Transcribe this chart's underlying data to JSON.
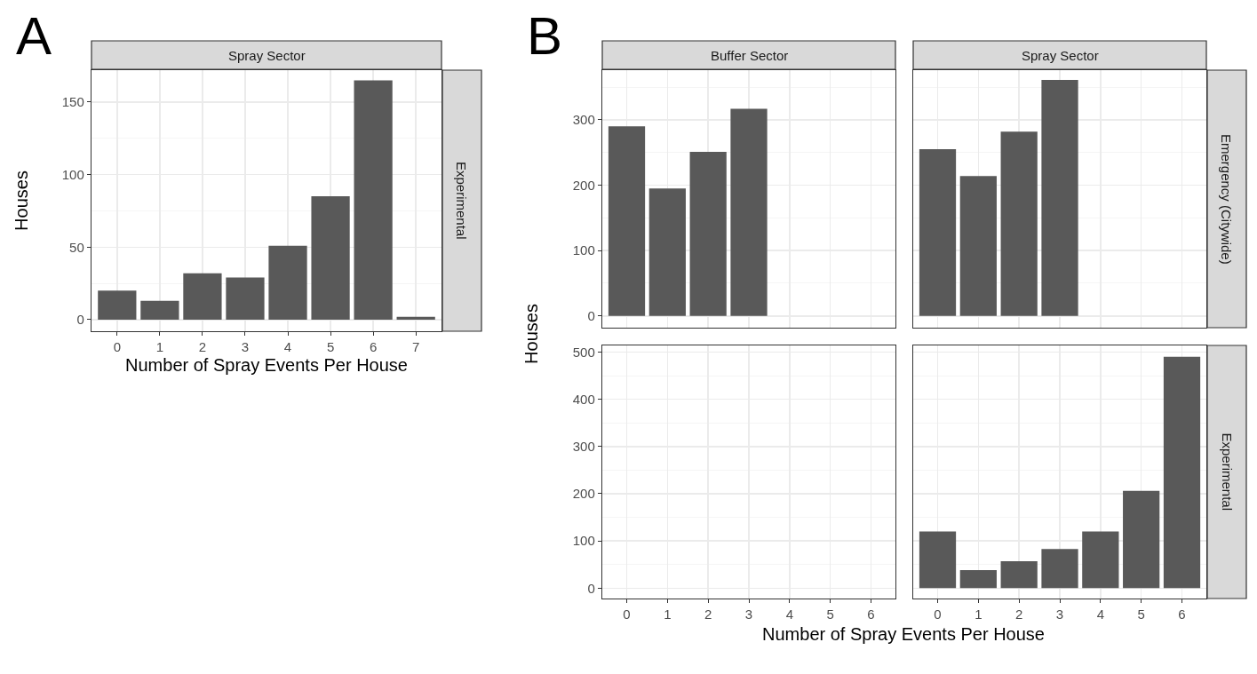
{
  "chart_data": [
    {
      "type": "bar",
      "title": "Spray Sector",
      "xlabel": "Number of Spray Events Per House",
      "ylabel": "Houses",
      "annotations": [
        "A",
        "Experimental"
      ],
      "categories": [
        "0",
        "1",
        "2",
        "3",
        "4",
        "5",
        "6",
        "7"
      ],
      "values": [
        20,
        13,
        32,
        29,
        51,
        85,
        165,
        2
      ],
      "color": "#595959",
      "ylim": [
        -8,
        172
      ],
      "yticks": [
        0,
        50,
        100,
        150
      ],
      "grid": true
    },
    {
      "type": "bar",
      "title": "Buffer Sector",
      "annotations": [
        "B"
      ],
      "categories": [
        "0",
        "1",
        "2",
        "3",
        "4",
        "5",
        "6"
      ],
      "values": [
        290,
        195,
        251,
        317,
        null,
        null,
        null
      ],
      "color": "#595959",
      "ylim": [
        -18,
        376
      ],
      "yticks": [
        0,
        100,
        200,
        300
      ],
      "grid": true,
      "tick_labels": "y"
    },
    {
      "type": "bar",
      "title": "Spray Sector",
      "annotations": [
        "Emergency (Citywide)"
      ],
      "categories": [
        "0",
        "1",
        "2",
        "3",
        "4",
        "5",
        "6"
      ],
      "values": [
        255,
        214,
        282,
        361,
        null,
        null,
        null
      ],
      "color": "#595959",
      "ylim": [
        -18,
        376
      ],
      "yticks": [
        0,
        100,
        200,
        300
      ],
      "grid": true,
      "tick_labels": false
    },
    {
      "type": "bar",
      "xlabel": "Number of Spray Events Per House",
      "ylabel": "Houses",
      "categories": [
        "0",
        "1",
        "2",
        "3",
        "4",
        "5",
        "6"
      ],
      "values": [
        null,
        null,
        null,
        null,
        null,
        null,
        null
      ],
      "color": "#595959",
      "ylim": [
        -22,
        514
      ],
      "yticks": [
        0,
        100,
        200,
        300,
        400,
        500
      ],
      "grid": true
    },
    {
      "type": "bar",
      "annotations": [
        "Experimental"
      ],
      "categories": [
        "0",
        "1",
        "2",
        "3",
        "4",
        "5",
        "6"
      ],
      "values": [
        120,
        38,
        57,
        83,
        120,
        206,
        490
      ],
      "color": "#595959",
      "ylim": [
        -22,
        514
      ],
      "yticks": [
        0,
        100,
        200,
        300,
        400,
        500
      ],
      "grid": true,
      "tick_labels": "x"
    }
  ]
}
